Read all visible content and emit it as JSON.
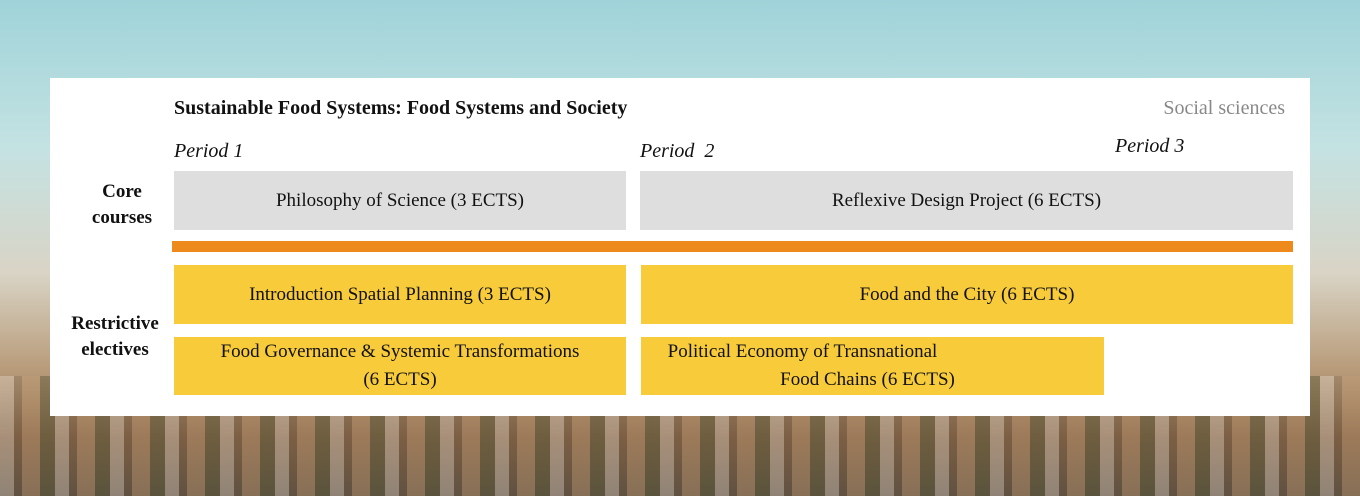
{
  "title": "Sustainable Food Systems: Food Systems and Society",
  "subtitle": "Social sciences",
  "periods": [
    "Period 1",
    "Period  2",
    "Period 3"
  ],
  "rows": {
    "core": [
      "Core",
      "courses"
    ],
    "electives": [
      "Restrictive",
      "electives"
    ]
  },
  "core_courses": [
    "Philosophy of Science (3 ECTS)",
    "Reflexive Design Project (6 ECTS)"
  ],
  "electives": [
    {
      "line1": "Introduction Spatial Planning (3 ECTS)"
    },
    {
      "line1": "Food and the City (6 ECTS)"
    },
    {
      "line1": "Food Governance & Systemic Transformations",
      "line2": "(6 ECTS)"
    },
    {
      "line1": "Political Economy of Transnational",
      "line2": "Food Chains (6 ECTS)"
    }
  ],
  "colors": {
    "core": "#dedede",
    "elective": "#f7cb3a",
    "divider": "#ee8a1b"
  }
}
